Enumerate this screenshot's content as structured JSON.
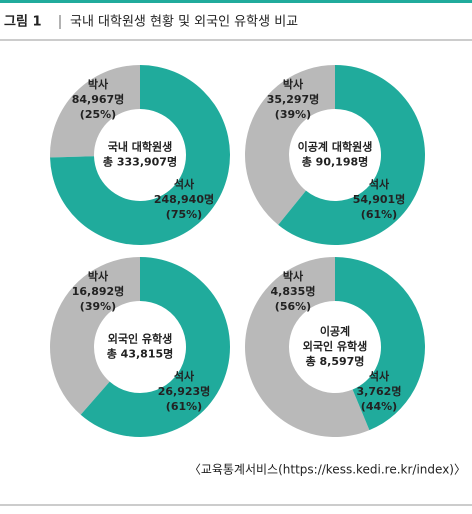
{
  "figure_label": "그림 1",
  "title": "국내 대학원생 현황 및 외국인 유학생 비교",
  "source": "〈교육통계서비스(https://kess.kedi.re.kr/index)〉",
  "chart_data": [
    {
      "type": "donut",
      "center_label": [
        "국내 대학원생",
        "총 333,907명"
      ],
      "categories": [
        "박사",
        "석사"
      ],
      "values": [
        84967,
        248940
      ],
      "value_labels": [
        "84,967명",
        "248,940명"
      ],
      "percent_labels": [
        "(25%)",
        "(75%)"
      ],
      "colors": [
        "#b9b9b9",
        "#20ab9c"
      ]
    },
    {
      "type": "donut",
      "center_label": [
        "이공계 대학원생",
        "총 90,198명"
      ],
      "categories": [
        "박사",
        "석사"
      ],
      "values": [
        35297,
        54901
      ],
      "value_labels": [
        "35,297명",
        "54,901명"
      ],
      "percent_labels": [
        "(39%)",
        "(61%)"
      ],
      "colors": [
        "#b9b9b9",
        "#20ab9c"
      ]
    },
    {
      "type": "donut",
      "center_label": [
        "외국인 유학생",
        "총 43,815명"
      ],
      "categories": [
        "박사",
        "석사"
      ],
      "values": [
        16892,
        26923
      ],
      "value_labels": [
        "16,892명",
        "26,923명"
      ],
      "percent_labels": [
        "(39%)",
        "(61%)"
      ],
      "colors": [
        "#b9b9b9",
        "#20ab9c"
      ]
    },
    {
      "type": "donut",
      "center_label": [
        "이공계",
        "외국인 유학생",
        "총 8,597명"
      ],
      "categories": [
        "박사",
        "석사"
      ],
      "values": [
        4835,
        3762
      ],
      "value_labels": [
        "4,835명",
        "3,762명"
      ],
      "percent_labels": [
        "(56%)",
        "(44%)"
      ],
      "colors": [
        "#b9b9b9",
        "#20ab9c"
      ]
    }
  ]
}
